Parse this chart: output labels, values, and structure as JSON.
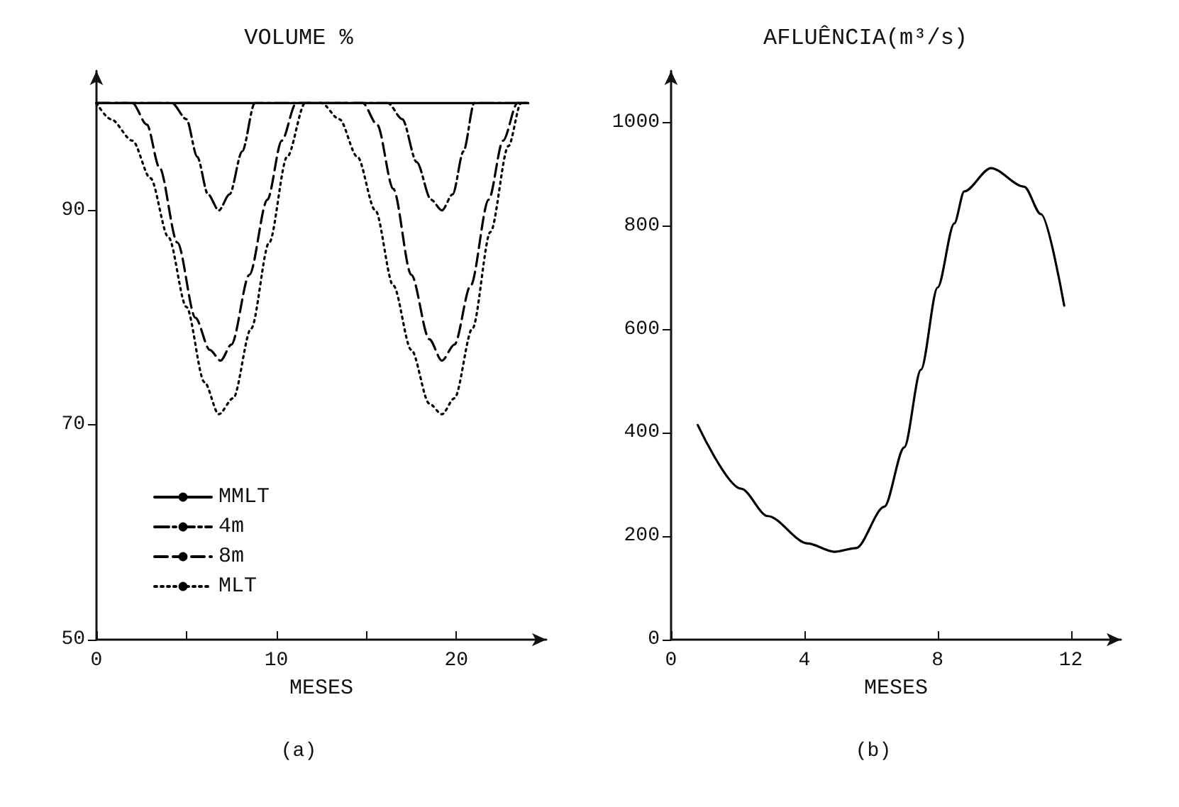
{
  "chart_data": [
    {
      "type": "line",
      "title": "VOLUME %",
      "xlabel": "MESES",
      "annotations": [
        "(a)"
      ],
      "xlim": [
        0,
        25
      ],
      "ylim": [
        50,
        103
      ],
      "xticks": [
        0,
        {
          "value": 5,
          "label": null
        },
        10,
        {
          "value": 15,
          "label": null
        },
        20
      ],
      "yticks": [
        50,
        70,
        90
      ],
      "grid": false,
      "legend": "bottom left",
      "marker": "none",
      "series": [
        {
          "name": "MMLT",
          "color": "#000000",
          "line_style": "solid",
          "x": [
            0,
            24
          ],
          "values": [
            100,
            100
          ]
        },
        {
          "name": "4m",
          "color": "#000000",
          "line_style": "dashdot",
          "x": [
            0,
            4.2,
            5,
            5.6,
            6.2,
            6.8,
            7.4,
            8.1,
            8.8,
            16.2,
            17,
            17.8,
            18.6,
            19.2,
            19.8,
            20.4,
            21,
            24
          ],
          "values": [
            100,
            100,
            98.5,
            95,
            91.5,
            90,
            91.5,
            95.5,
            100,
            100,
            98.5,
            94.5,
            91,
            90,
            91.5,
            95.5,
            100,
            100
          ]
        },
        {
          "name": "8m",
          "color": "#000000",
          "line_style": "dashed",
          "x": [
            0,
            2,
            2.8,
            3.5,
            4.5,
            5.5,
            6.3,
            6.9,
            7.5,
            8.5,
            9.5,
            10.3,
            11.1,
            14.8,
            15.6,
            16.5,
            17.5,
            18.5,
            19.2,
            19.9,
            20.8,
            21.8,
            22.6,
            23.4,
            24
          ],
          "values": [
            100,
            100,
            98,
            94,
            87,
            80,
            77,
            76,
            77.5,
            84,
            91,
            96.5,
            100,
            100,
            98,
            92,
            84,
            78,
            76,
            77.5,
            83,
            91,
            96.5,
            100,
            100
          ]
        },
        {
          "name": "MLT",
          "color": "#000000",
          "line_style": "dotted",
          "x": [
            0,
            0.8,
            2,
            3,
            4,
            5,
            6,
            6.8,
            7.6,
            8.6,
            9.6,
            10.6,
            11.6,
            12.5,
            13.5,
            14.5,
            15.5,
            16.5,
            17.5,
            18.5,
            19.2,
            19.9,
            20.9,
            21.9,
            22.9,
            23.6,
            24
          ],
          "values": [
            100,
            98.5,
            96.5,
            93,
            87.5,
            81,
            74,
            71,
            72.5,
            79,
            87,
            95,
            100,
            100,
            98.5,
            95,
            90,
            83,
            77,
            72,
            71,
            72.5,
            79,
            88,
            96,
            100,
            100
          ]
        }
      ]
    },
    {
      "type": "line",
      "title": "AFLUÊNCIA(m³/s)",
      "xlabel": "MESES",
      "annotations": [
        "(b)"
      ],
      "xlim": [
        0,
        13.5
      ],
      "ylim": [
        0,
        1100
      ],
      "xticks": [
        0,
        4,
        8,
        12
      ],
      "yticks": [
        0,
        200,
        400,
        600,
        800,
        1000
      ],
      "grid": false,
      "marker": "none",
      "series": [
        {
          "color": "#000000",
          "line_style": "solid",
          "x": [
            0.8,
            2.1,
            2.9,
            4.1,
            4.9,
            5.55,
            6.4,
            7,
            7.5,
            8,
            8.5,
            8.8,
            9.6,
            10.6,
            11.1,
            11.8
          ],
          "values": [
            415,
            292,
            239,
            186,
            170,
            177,
            257,
            372,
            522,
            681,
            805,
            867,
            912,
            876,
            823,
            646
          ]
        }
      ]
    }
  ]
}
